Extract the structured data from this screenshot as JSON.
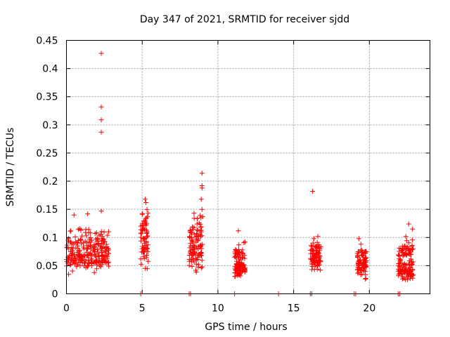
{
  "chart_data": {
    "type": "scatter",
    "title": "Day 347 of 2021, SRMTID for receiver sjdd",
    "xlabel": "GPS time / hours",
    "ylabel": "SRMTID / TECUs",
    "xlim": [
      0,
      24
    ],
    "ylim": [
      0,
      0.45
    ],
    "x_ticks": [
      0,
      5,
      10,
      15,
      20
    ],
    "x_tick_labels": [
      "0",
      "5",
      "10",
      "15",
      "20"
    ],
    "y_ticks": [
      0,
      0.05,
      0.1,
      0.15,
      0.2,
      0.25,
      0.3,
      0.35,
      0.4,
      0.45
    ],
    "y_tick_labels": [
      "0",
      "0.05",
      "0.1",
      "0.15",
      "0.2",
      "0.25",
      "0.3",
      "0.35",
      "0.4",
      "0.45"
    ],
    "grid": true,
    "marker": "+",
    "marker_color": "#ff0000",
    "series": [
      {
        "name": "SRMTID",
        "clusters": [
          {
            "x_start": 0.0,
            "x_end": 2.8,
            "y_min": 0.03,
            "y_max": 0.14,
            "y_center": 0.07,
            "count": 260
          },
          {
            "x_start": 4.9,
            "x_end": 5.4,
            "y_min": 0.02,
            "y_max": 0.17,
            "y_center": 0.1,
            "count": 70
          },
          {
            "x_start": 8.1,
            "x_end": 9.0,
            "y_min": 0.03,
            "y_max": 0.16,
            "y_center": 0.085,
            "count": 110
          },
          {
            "x_start": 11.1,
            "x_end": 11.8,
            "y_min": 0.02,
            "y_max": 0.11,
            "y_center": 0.05,
            "count": 110
          },
          {
            "x_start": 16.1,
            "x_end": 16.8,
            "y_min": 0.03,
            "y_max": 0.11,
            "y_center": 0.065,
            "count": 90
          },
          {
            "x_start": 19.2,
            "x_end": 19.8,
            "y_min": 0.02,
            "y_max": 0.1,
            "y_center": 0.055,
            "count": 80
          },
          {
            "x_start": 21.9,
            "x_end": 22.9,
            "y_min": 0.02,
            "y_max": 0.12,
            "y_center": 0.045,
            "count": 140
          }
        ],
        "points": [
          {
            "x": 2.3,
            "y": 0.427
          },
          {
            "x": 2.3,
            "y": 0.332
          },
          {
            "x": 2.3,
            "y": 0.309
          },
          {
            "x": 2.3,
            "y": 0.287
          },
          {
            "x": 8.95,
            "y": 0.214
          },
          {
            "x": 8.95,
            "y": 0.192
          },
          {
            "x": 8.95,
            "y": 0.188
          },
          {
            "x": 16.25,
            "y": 0.182
          },
          {
            "x": 5.2,
            "y": 0.168
          },
          {
            "x": 5.25,
            "y": 0.162
          },
          {
            "x": 8.9,
            "y": 0.168
          },
          {
            "x": 8.95,
            "y": 0.15
          },
          {
            "x": 22.6,
            "y": 0.124
          },
          {
            "x": 22.85,
            "y": 0.115
          },
          {
            "x": 1.4,
            "y": 0.142
          },
          {
            "x": 2.3,
            "y": 0.147
          },
          {
            "x": 0.5,
            "y": 0.14
          },
          {
            "x": 11.35,
            "y": 0.112
          },
          {
            "x": 16.6,
            "y": 0.102
          },
          {
            "x": 19.3,
            "y": 0.098
          }
        ],
        "zero_points_x": [
          4.9,
          8.1,
          8.2,
          11.1,
          14.0,
          16.1,
          16.2,
          19.0,
          19.1,
          21.9,
          22.0
        ]
      }
    ]
  }
}
